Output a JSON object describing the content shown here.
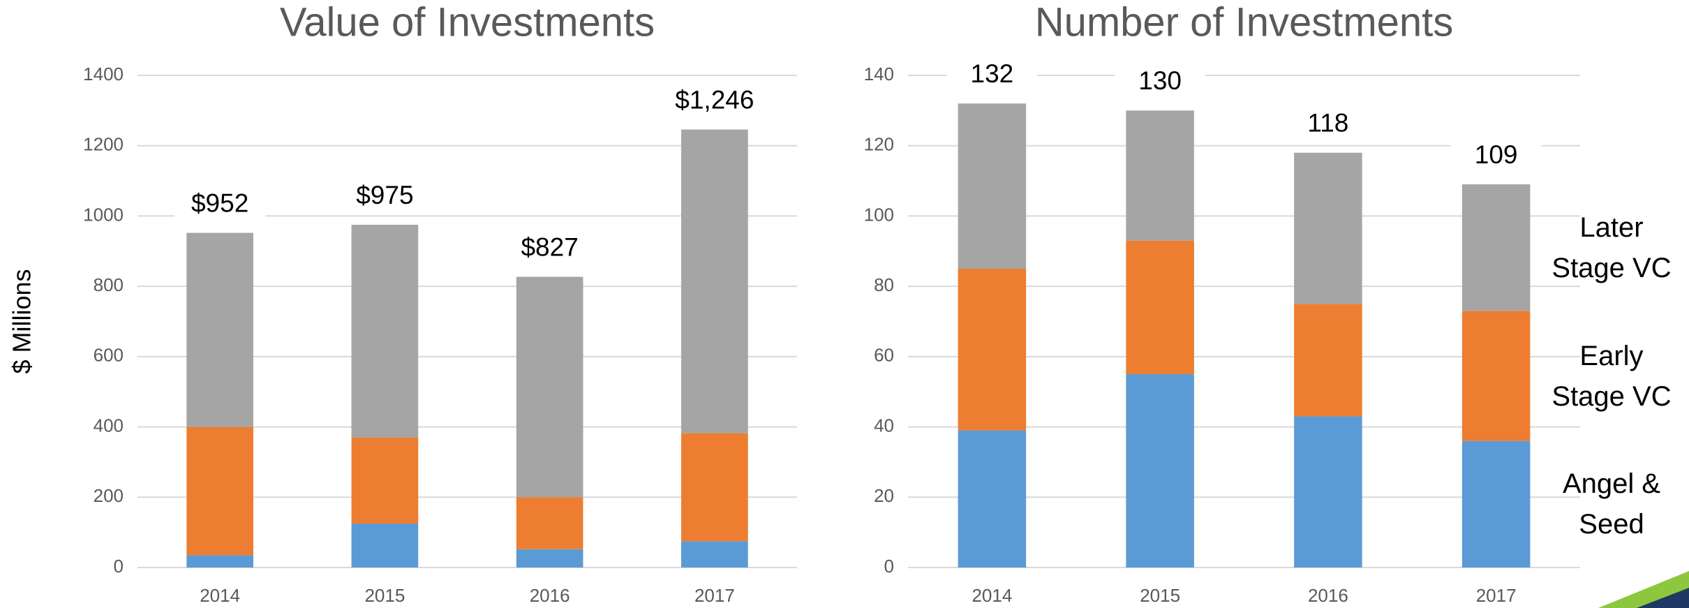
{
  "chart_data": [
    {
      "type": "stacked_bar",
      "title": "Value of Investments",
      "y_label": "$ Millions",
      "categories": [
        "2014",
        "2015",
        "2016",
        "2017"
      ],
      "series": [
        {
          "color": "#5b9bd5",
          "values": [
            35,
            125,
            52,
            75
          ]
        },
        {
          "color": "#ed7d31",
          "values": [
            365,
            245,
            148,
            307
          ]
        },
        {
          "color": "#a5a5a5",
          "values": [
            552,
            605,
            627,
            864
          ]
        }
      ],
      "totals": [
        952,
        975,
        827,
        1246
      ],
      "total_labels": [
        "$952",
        "$975",
        "$827",
        "$1,246"
      ],
      "ylim": [
        0,
        1400
      ],
      "yticks": [
        0,
        200,
        400,
        600,
        800,
        1000,
        1200,
        1400
      ],
      "grid": true
    },
    {
      "type": "stacked_bar",
      "title": "Number of Investments",
      "categories": [
        "2014",
        "2015",
        "2016",
        "2017"
      ],
      "series": [
        {
          "name": "Angel & Seed",
          "color": "#5b9bd5",
          "values": [
            39,
            55,
            43,
            36
          ]
        },
        {
          "name": "Early Stage VC",
          "color": "#ed7d31",
          "values": [
            46,
            38,
            32,
            37
          ]
        },
        {
          "name": "Later Stage VC",
          "color": "#a5a5a5",
          "values": [
            47,
            37,
            43,
            36
          ]
        }
      ],
      "totals": [
        132,
        130,
        118,
        109
      ],
      "ylim": [
        0,
        140
      ],
      "yticks": [
        0,
        20,
        40,
        60,
        80,
        100,
        120,
        140
      ],
      "grid": true,
      "legend": "right"
    }
  ]
}
